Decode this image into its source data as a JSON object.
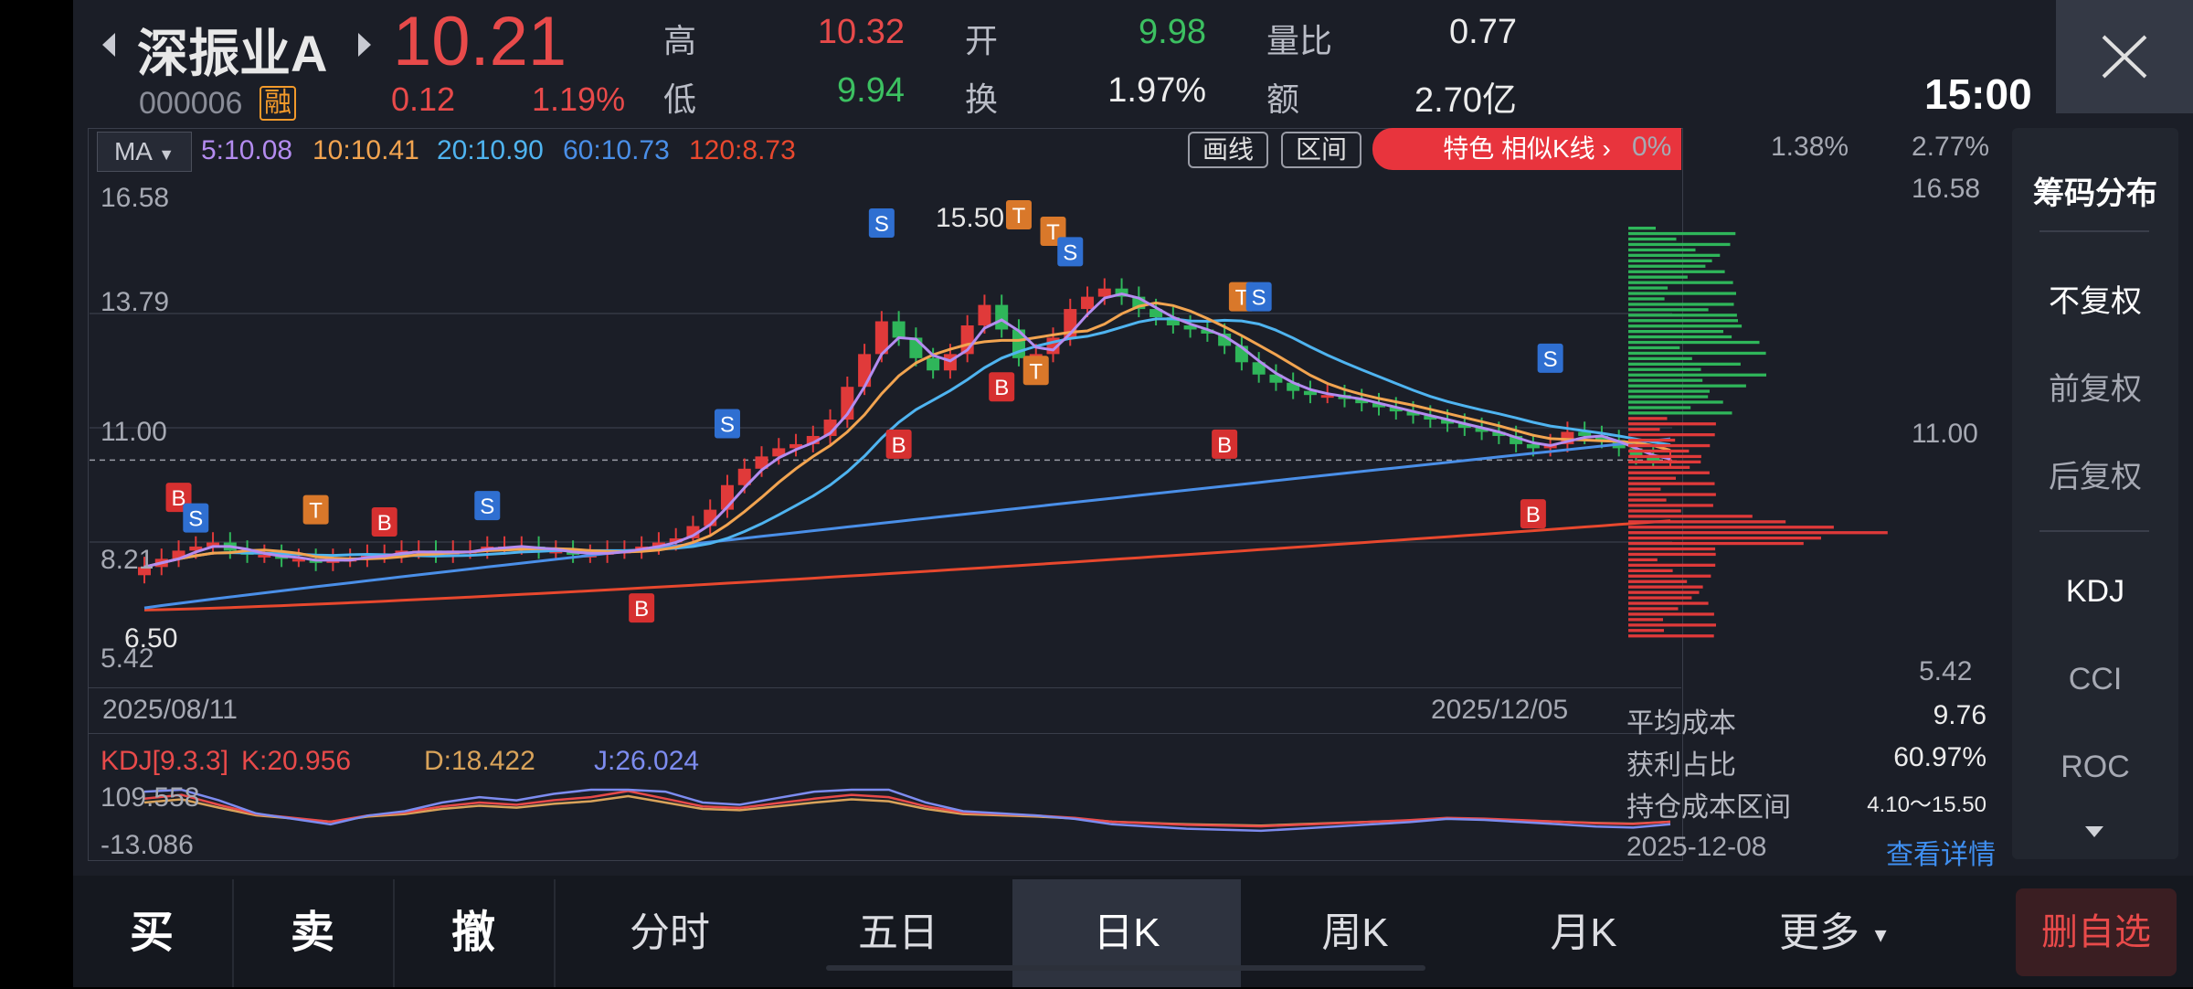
{
  "stock": {
    "name": "深振业A",
    "code": "000006",
    "margin_badge": "融",
    "price": "10.21",
    "change": "0.12",
    "change_pct": "1.19%",
    "time": "15:00"
  },
  "quote": {
    "high_label": "高",
    "high": "10.32",
    "open_label": "开",
    "open": "9.98",
    "vol_ratio_label": "量比",
    "vol_ratio": "0.77",
    "low_label": "低",
    "low": "9.94",
    "turnover_label": "换",
    "turnover": "1.97%",
    "amount_label": "额",
    "amount": "2.70亿"
  },
  "ma_bar": {
    "selector": "MA",
    "ma5": "5:10.08",
    "ma10": "10:10.41",
    "ma20": "20:10.90",
    "ma60": "60:10.73",
    "ma120": "120:8.73",
    "draw_btn": "画线",
    "range_btn": "区间",
    "special_btn": "特色  相似K线 ›",
    "colors": {
      "ma5": "#b48cf0",
      "ma10": "#f2a450",
      "ma20": "#4fb4f0",
      "ma60": "#4a8fe8",
      "ma120": "#e8482e"
    }
  },
  "main_chart": {
    "y_labels": [
      "16.58",
      "13.79",
      "11.00",
      "8.21",
      "5.42"
    ],
    "high_marker": "15.50",
    "low_marker": "6.50",
    "date_start": "2025/08/11",
    "date_end": "2025/12/05"
  },
  "kdj": {
    "title": "KDJ[9.3.3]",
    "k": "K:20.956",
    "d": "D:18.422",
    "j": "J:26.024",
    "max": "109.558",
    "min": "-13.086"
  },
  "distribution": {
    "pct_labels": [
      "0%",
      "1.38%",
      "2.77%"
    ],
    "y_top": "16.58",
    "y_mid": "11.00",
    "y_bottom": "5.42",
    "avg_cost_label": "平均成本",
    "avg_cost": "9.76",
    "profit_ratio_label": "获利占比",
    "profit_ratio": "60.97%",
    "cost_range_label": "持仓成本区间",
    "cost_range": "4.10～15.50",
    "date": "2025-12-08",
    "detail_link": "查看详情"
  },
  "side_menu": {
    "chip": "筹码分布",
    "no_adjust": "不复权",
    "pre_adjust": "前复权",
    "post_adjust": "后复权",
    "kdj": "KDJ",
    "cci": "CCI",
    "roc": "ROC"
  },
  "bottom_bar": {
    "buy": "买",
    "sell": "卖",
    "cancel": "撤",
    "intraday": "分时",
    "five_day": "五日",
    "day_k": "日K",
    "week_k": "周K",
    "month_k": "月K",
    "more": "更多",
    "remove": "删自选"
  },
  "chart_data": {
    "type": "candlestick",
    "x_range": [
      "2025/08/11",
      "2025/12/05"
    ],
    "ylim": [
      5.42,
      16.58
    ],
    "series": [
      {
        "name": "5",
        "last": 10.08
      },
      {
        "name": "10",
        "last": 10.41
      },
      {
        "name": "20",
        "last": 10.9
      },
      {
        "name": "60",
        "last": 10.73
      },
      {
        "name": "120",
        "last": 8.73
      }
    ],
    "close_approx": [
      7.6,
      7.8,
      8.0,
      8.1,
      8.2,
      8.0,
      7.9,
      7.9,
      7.8,
      7.8,
      7.7,
      7.8,
      7.8,
      7.9,
      7.9,
      8.0,
      8.0,
      7.9,
      8.0,
      8.0,
      8.1,
      8.1,
      8.1,
      8.0,
      8.0,
      7.9,
      7.9,
      8.0,
      8.0,
      8.1,
      8.2,
      8.3,
      8.6,
      9.0,
      9.6,
      10.0,
      10.3,
      10.5,
      10.6,
      10.8,
      11.2,
      12.0,
      12.8,
      13.6,
      13.2,
      12.7,
      12.4,
      12.8,
      13.5,
      14.0,
      13.4,
      12.7,
      12.8,
      13.2,
      13.9,
      14.2,
      14.4,
      14.2,
      13.9,
      13.7,
      13.5,
      13.4,
      13.3,
      13.0,
      12.6,
      12.3,
      12.1,
      11.9,
      11.8,
      11.8,
      11.7,
      11.6,
      11.5,
      11.4,
      11.3,
      11.2,
      11.1,
      11.0,
      10.9,
      10.8,
      10.6,
      10.5,
      10.6,
      10.9,
      10.8,
      10.7,
      10.5,
      10.3,
      10.2,
      10.21
    ]
  }
}
